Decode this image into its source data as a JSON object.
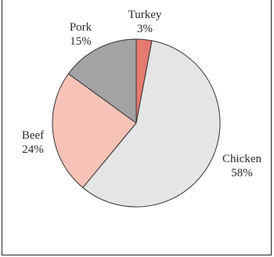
{
  "chart_data": {
    "type": "pie",
    "categories": [
      "Turkey",
      "Chicken",
      "Beef",
      "Pork"
    ],
    "values": [
      3,
      58,
      24,
      15
    ],
    "value_labels": [
      "3%",
      "58%",
      "24%",
      "15%"
    ],
    "colors": [
      "#e57a70",
      "#e5e5e5",
      "#f6c3b6",
      "#a3a3a6"
    ],
    "start_angle_deg": 0,
    "direction": "clockwise",
    "slice_outline_color": "#333333"
  }
}
